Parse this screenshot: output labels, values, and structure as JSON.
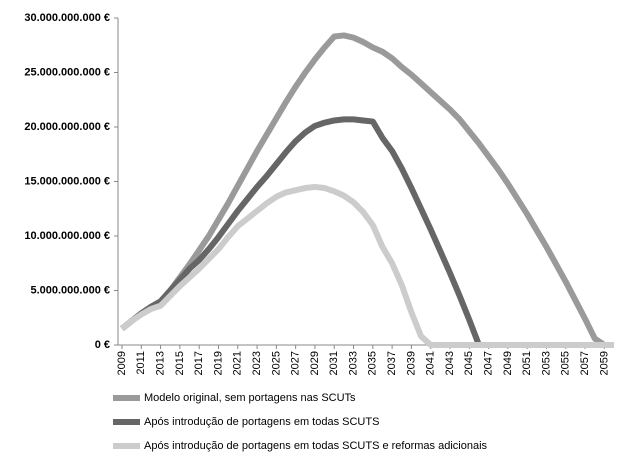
{
  "chart_data": {
    "type": "line",
    "x": [
      2009,
      2010,
      2011,
      2012,
      2013,
      2014,
      2015,
      2016,
      2017,
      2018,
      2019,
      2020,
      2021,
      2022,
      2023,
      2024,
      2025,
      2026,
      2027,
      2028,
      2029,
      2030,
      2031,
      2032,
      2033,
      2034,
      2035,
      2036,
      2037,
      2038,
      2039,
      2040,
      2041,
      2042,
      2043,
      2044,
      2045,
      2046,
      2047,
      2048,
      2049,
      2050,
      2051,
      2052,
      2053,
      2054,
      2055,
      2056,
      2057,
      2058,
      2059,
      2060
    ],
    "xlim": [
      2009,
      2060
    ],
    "xticks": [
      2009,
      2011,
      2013,
      2015,
      2017,
      2019,
      2021,
      2023,
      2025,
      2027,
      2029,
      2031,
      2033,
      2035,
      2037,
      2039,
      2041,
      2043,
      2045,
      2047,
      2049,
      2051,
      2053,
      2055,
      2057,
      2059
    ],
    "ylim": [
      0,
      30000000000
    ],
    "yticks": [
      {
        "value": 0,
        "label": "0 €"
      },
      {
        "value": 5000000000,
        "label": "5.000.000.000 €"
      },
      {
        "value": 10000000000,
        "label": "10.000.000.000 €"
      },
      {
        "value": 15000000000,
        "label": "15.000.000.000 €"
      },
      {
        "value": 20000000000,
        "label": "20.000.000.000 €"
      },
      {
        "value": 25000000000,
        "label": "25.000.000.000 €"
      },
      {
        "value": 30000000000,
        "label": "30.000.000.000 €"
      }
    ],
    "series": [
      {
        "name": "Modelo original, sem portagens nas SCUTs",
        "color": "#9a9a9a",
        "values": [
          1500000000.0,
          2200000000.0,
          2900000000.0,
          3500000000.0,
          4000000000.0,
          5000000000.0,
          6200000000.0,
          7400000000.0,
          8700000000.0,
          10000000000.0,
          11500000000.0,
          13000000000.0,
          14600000000.0,
          16200000000.0,
          17800000000.0,
          19300000000.0,
          20800000000.0,
          22300000000.0,
          23700000000.0,
          25000000000.0,
          26200000000.0,
          27300000000.0,
          28300000000.0,
          28400000000.0,
          28200000000.0,
          27800000000.0,
          27300000000.0,
          26900000000.0,
          26300000000.0,
          25500000000.0,
          24800000000.0,
          24000000000.0,
          23200000000.0,
          22400000000.0,
          21600000000.0,
          20700000000.0,
          19600000000.0,
          18500000000.0,
          17300000000.0,
          16100000000.0,
          14800000000.0,
          13400000000.0,
          12000000000.0,
          10500000000.0,
          9000000000.0,
          7400000000.0,
          5800000000.0,
          4100000000.0,
          2400000000.0,
          600000000.0,
          0,
          0
        ]
      },
      {
        "name": "Após introdução de portagens em todas SCUTS",
        "color": "#666666",
        "values": [
          1500000000.0,
          2200000000.0,
          2900000000.0,
          3500000000.0,
          4000000000.0,
          5000000000.0,
          6000000000.0,
          7000000000.0,
          7800000000.0,
          8800000000.0,
          9900000000.0,
          11100000000.0,
          12300000000.0,
          13400000000.0,
          14500000000.0,
          15500000000.0,
          16600000000.0,
          17700000000.0,
          18700000000.0,
          19500000000.0,
          20100000000.0,
          20400000000.0,
          20600000000.0,
          20700000000.0,
          20700000000.0,
          20600000000.0,
          20500000000.0,
          19000000000.0,
          17800000000.0,
          16200000000.0,
          14400000000.0,
          12500000000.0,
          10600000000.0,
          8600000000.0,
          6600000000.0,
          4500000000.0,
          2300000000.0,
          0,
          0,
          0,
          0,
          0,
          0,
          0,
          0,
          0,
          0,
          0,
          0,
          0,
          0,
          0
        ]
      },
      {
        "name": "Após introdução de portagens em todas SCUTS e reformas adicionais",
        "color": "#cccccc",
        "values": [
          1500000000.0,
          2200000000.0,
          2800000000.0,
          3300000000.0,
          3600000000.0,
          4500000000.0,
          5400000000.0,
          6200000000.0,
          7000000000.0,
          7900000000.0,
          8800000000.0,
          9900000000.0,
          10900000000.0,
          11600000000.0,
          12300000000.0,
          13000000000.0,
          13600000000.0,
          14000000000.0,
          14200000000.0,
          14400000000.0,
          14500000000.0,
          14400000000.0,
          14100000000.0,
          13700000000.0,
          13100000000.0,
          12200000000.0,
          11000000000.0,
          9000000000.0,
          7500000000.0,
          5500000000.0,
          3000000000.0,
          800000000.0,
          0,
          0,
          0,
          0,
          0,
          0,
          0,
          0,
          0,
          0,
          0,
          0,
          0,
          0,
          0,
          0,
          0,
          0,
          0,
          0
        ]
      }
    ]
  }
}
